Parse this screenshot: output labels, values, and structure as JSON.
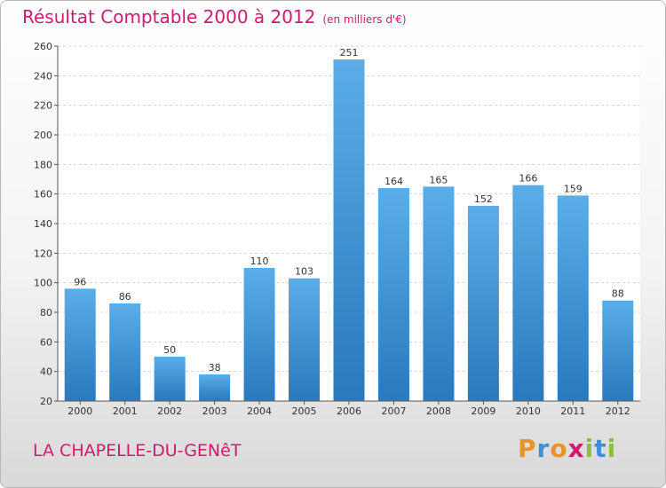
{
  "header": {
    "title": "Résultat Comptable 2000 à 2012",
    "subtitle": "(en milliers d'€)"
  },
  "footer": {
    "commune": "LA CHAPELLE-DU-GENêT",
    "logo_text": "Proxiti",
    "logo_letters": [
      {
        "ch": "P",
        "color": "#e8932a"
      },
      {
        "ch": "r",
        "color": "#3f8fd6"
      },
      {
        "ch": "o",
        "color": "#e8932a"
      },
      {
        "ch": "x",
        "color": "#d01a6e"
      },
      {
        "ch": "i",
        "color": "#8cbf3f"
      },
      {
        "ch": "t",
        "color": "#3f8fd6"
      },
      {
        "ch": "i",
        "color": "#8cbf3f"
      }
    ]
  },
  "chart_data": {
    "type": "bar",
    "categories": [
      "2000",
      "2001",
      "2002",
      "2003",
      "2004",
      "2005",
      "2006",
      "2007",
      "2008",
      "2009",
      "2010",
      "2011",
      "2012"
    ],
    "values": [
      96,
      86,
      50,
      38,
      110,
      103,
      251,
      164,
      165,
      152,
      166,
      159,
      88
    ],
    "ylim": [
      20,
      260
    ],
    "yticks": [
      20,
      40,
      60,
      80,
      100,
      120,
      140,
      160,
      180,
      200,
      220,
      240,
      260
    ],
    "grid": true,
    "bar_color_top": "#5aaee8",
    "bar_color_bottom": "#2a78bd",
    "title_color": "#d01a6e"
  }
}
